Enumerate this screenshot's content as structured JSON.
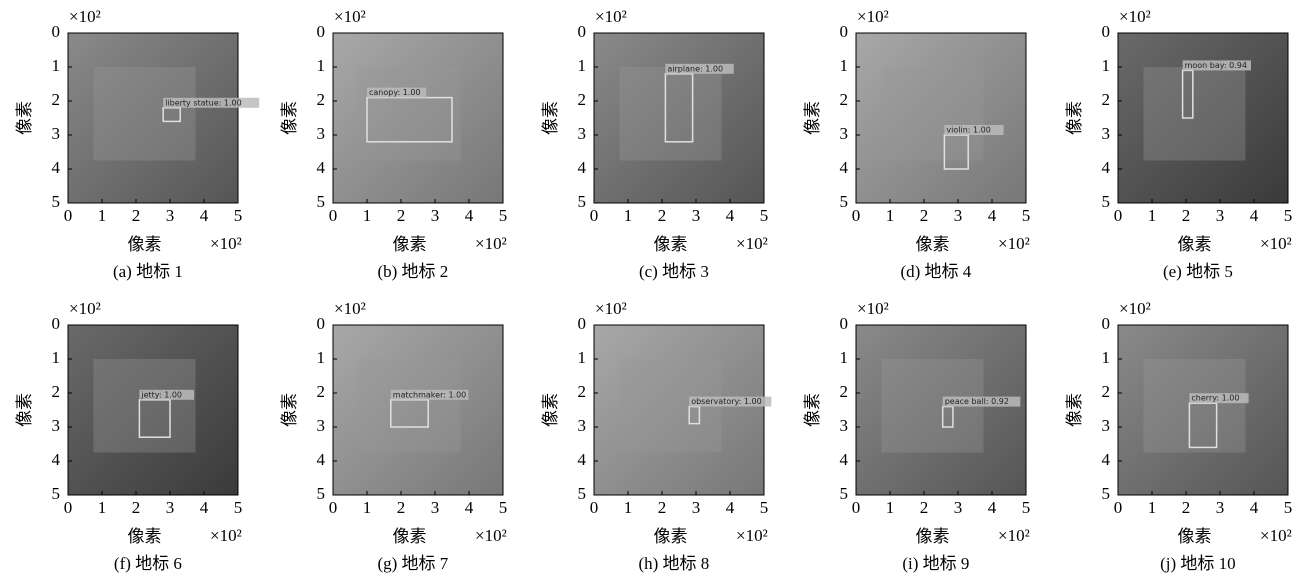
{
  "chart_data": [
    {
      "type": "image",
      "caption": "(a) 地标 1",
      "xlabel": "像素",
      "ylabel": "像素",
      "xscale": "×10²",
      "yscale": "×10²",
      "xlim": [
        0,
        5
      ],
      "ylim": [
        5,
        0
      ],
      "xticks": [
        0,
        1,
        2,
        3,
        4,
        5
      ],
      "yticks": [
        0,
        1,
        2,
        3,
        4,
        5
      ],
      "detection": {
        "label": "liberty statue: 1.00",
        "box": [
          2.8,
          2.2,
          3.3,
          2.6
        ]
      }
    },
    {
      "type": "image",
      "caption": "(b) 地标 2",
      "xlabel": "像素",
      "ylabel": "像素",
      "xscale": "×10²",
      "yscale": "×10²",
      "xlim": [
        0,
        5
      ],
      "ylim": [
        5,
        0
      ],
      "xticks": [
        0,
        1,
        2,
        3,
        4,
        5
      ],
      "yticks": [
        0,
        1,
        2,
        3,
        4,
        5
      ],
      "detection": {
        "label": "canopy: 1.00",
        "box": [
          1.0,
          1.9,
          3.5,
          3.2
        ]
      }
    },
    {
      "type": "image",
      "caption": "(c) 地标 3",
      "xlabel": "像素",
      "ylabel": "像素",
      "xscale": "×10²",
      "yscale": "×10²",
      "xlim": [
        0,
        5
      ],
      "ylim": [
        5,
        0
      ],
      "xticks": [
        0,
        1,
        2,
        3,
        4,
        5
      ],
      "yticks": [
        0,
        1,
        2,
        3,
        4,
        5
      ],
      "detection": {
        "label": "airplane: 1.00",
        "box": [
          2.1,
          1.2,
          2.9,
          3.2
        ]
      }
    },
    {
      "type": "image",
      "caption": "(d) 地标 4",
      "xlabel": "像素",
      "ylabel": "像素",
      "xscale": "×10²",
      "yscale": "×10²",
      "xlim": [
        0,
        5
      ],
      "ylim": [
        5,
        0
      ],
      "xticks": [
        0,
        1,
        2,
        3,
        4,
        5
      ],
      "yticks": [
        0,
        1,
        2,
        3,
        4,
        5
      ],
      "detection": {
        "label": "violin: 1.00",
        "box": [
          2.6,
          3.0,
          3.3,
          4.0
        ]
      }
    },
    {
      "type": "image",
      "caption": "(e) 地标 5",
      "xlabel": "像素",
      "ylabel": "像素",
      "xscale": "×10²",
      "yscale": "×10²",
      "xlim": [
        0,
        5
      ],
      "ylim": [
        5,
        0
      ],
      "xticks": [
        0,
        1,
        2,
        3,
        4,
        5
      ],
      "yticks": [
        0,
        1,
        2,
        3,
        4,
        5
      ],
      "detection": {
        "label": "moon bay: 0.94",
        "box": [
          1.9,
          1.1,
          2.2,
          2.5
        ]
      }
    },
    {
      "type": "image",
      "caption": "(f) 地标 6",
      "xlabel": "像素",
      "ylabel": "像素",
      "xscale": "×10²",
      "yscale": "×10²",
      "xlim": [
        0,
        5
      ],
      "ylim": [
        5,
        0
      ],
      "xticks": [
        0,
        1,
        2,
        3,
        4,
        5
      ],
      "yticks": [
        0,
        1,
        2,
        3,
        4,
        5
      ],
      "detection": {
        "label": "jetty: 1.00",
        "box": [
          2.1,
          2.2,
          3.0,
          3.3
        ]
      }
    },
    {
      "type": "image",
      "caption": "(g) 地标 7",
      "xlabel": "像素",
      "ylabel": "像素",
      "xscale": "×10²",
      "yscale": "×10²",
      "xlim": [
        0,
        5
      ],
      "ylim": [
        5,
        0
      ],
      "xticks": [
        0,
        1,
        2,
        3,
        4,
        5
      ],
      "yticks": [
        0,
        1,
        2,
        3,
        4,
        5
      ],
      "detection": {
        "label": "matchmaker: 1.00",
        "box": [
          1.7,
          2.2,
          2.8,
          3.0
        ]
      }
    },
    {
      "type": "image",
      "caption": "(h) 地标 8",
      "xlabel": "像素",
      "ylabel": "像素",
      "xscale": "×10²",
      "yscale": "×10²",
      "xlim": [
        0,
        5
      ],
      "ylim": [
        5,
        0
      ],
      "xticks": [
        0,
        1,
        2,
        3,
        4,
        5
      ],
      "yticks": [
        0,
        1,
        2,
        3,
        4,
        5
      ],
      "detection": {
        "label": "observatory: 1.00",
        "box": [
          2.8,
          2.4,
          3.1,
          2.9
        ]
      }
    },
    {
      "type": "image",
      "caption": "(i) 地标 9",
      "xlabel": "像素",
      "ylabel": "像素",
      "xscale": "×10²",
      "yscale": "×10²",
      "xlim": [
        0,
        5
      ],
      "ylim": [
        5,
        0
      ],
      "xticks": [
        0,
        1,
        2,
        3,
        4,
        5
      ],
      "yticks": [
        0,
        1,
        2,
        3,
        4,
        5
      ],
      "detection": {
        "label": "peace ball: 0.92",
        "box": [
          2.55,
          2.4,
          2.85,
          3.0
        ]
      }
    },
    {
      "type": "image",
      "caption": "(j) 地标 10",
      "xlabel": "像素",
      "ylabel": "像素",
      "xscale": "×10²",
      "yscale": "×10²",
      "xlim": [
        0,
        5
      ],
      "ylim": [
        5,
        0
      ],
      "xticks": [
        0,
        1,
        2,
        3,
        4,
        5
      ],
      "yticks": [
        0,
        1,
        2,
        3,
        4,
        5
      ],
      "detection": {
        "label": "cherry: 1.00",
        "box": [
          2.1,
          2.3,
          2.9,
          3.6
        ]
      }
    }
  ]
}
